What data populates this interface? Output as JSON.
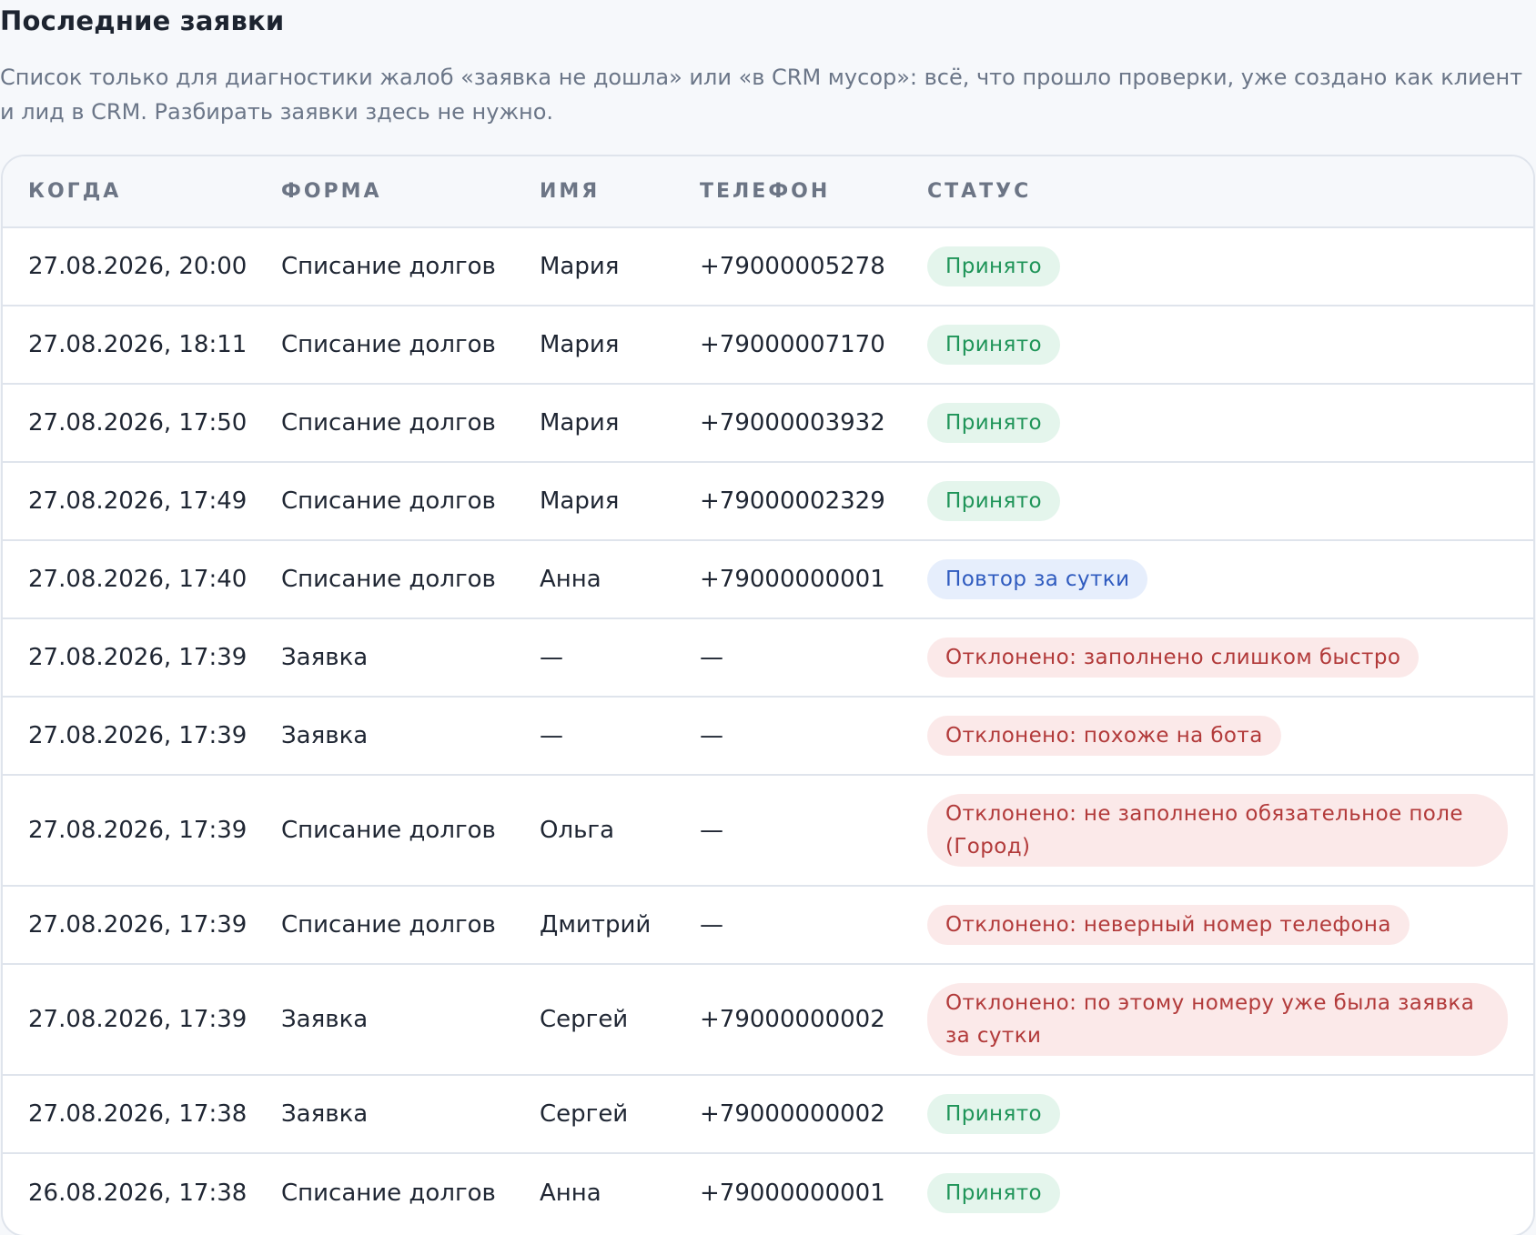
{
  "page": {
    "title": "Последние заявки",
    "description": "Список только для диагностики жалоб «заявка не дошла» или «в CRM мусор»: всё, что прошло проверки, уже создано как клиент и лид в CRM. Разбирать заявки здесь не нужно."
  },
  "colors": {
    "accepted": "#1e9458",
    "repeat": "#2f5bbf",
    "rejected": "#b23a3a"
  },
  "table": {
    "headers": [
      "КОГДА",
      "ФОРМА",
      "ИМЯ",
      "ТЕЛЕФОН",
      "СТАТУС"
    ],
    "rows": [
      {
        "when": "27.08.2026, 20:00",
        "form": "Списание долгов",
        "name": "Мария",
        "phone": "+79000005278",
        "status": "Принято",
        "status_type": "ok"
      },
      {
        "when": "27.08.2026, 18:11",
        "form": "Списание долгов",
        "name": "Мария",
        "phone": "+79000007170",
        "status": "Принято",
        "status_type": "ok"
      },
      {
        "when": "27.08.2026, 17:50",
        "form": "Списание долгов",
        "name": "Мария",
        "phone": "+79000003932",
        "status": "Принято",
        "status_type": "ok"
      },
      {
        "when": "27.08.2026, 17:49",
        "form": "Списание долгов",
        "name": "Мария",
        "phone": "+79000002329",
        "status": "Принято",
        "status_type": "ok"
      },
      {
        "when": "27.08.2026, 17:40",
        "form": "Списание долгов",
        "name": "Анна",
        "phone": "+79000000001",
        "status": "Повтор за сутки",
        "status_type": "repeat"
      },
      {
        "when": "27.08.2026, 17:39",
        "form": "Заявка",
        "name": "—",
        "phone": "—",
        "status": "Отклонено: заполнено слишком быстро",
        "status_type": "rejected"
      },
      {
        "when": "27.08.2026, 17:39",
        "form": "Заявка",
        "name": "—",
        "phone": "—",
        "status": "Отклонено: похоже на бота",
        "status_type": "rejected"
      },
      {
        "when": "27.08.2026, 17:39",
        "form": "Списание долгов",
        "name": "Ольга",
        "phone": "—",
        "status": "Отклонено: не заполнено обязательное поле (Город)",
        "status_type": "rejected",
        "tall": true
      },
      {
        "when": "27.08.2026, 17:39",
        "form": "Списание долгов",
        "name": "Дмитрий",
        "phone": "—",
        "status": "Отклонено: неверный номер телефона",
        "status_type": "rejected"
      },
      {
        "when": "27.08.2026, 17:39",
        "form": "Заявка",
        "name": "Сергей",
        "phone": "+79000000002",
        "status": "Отклонено: по этому номеру уже была заявка за сутки",
        "status_type": "rejected",
        "tall": true
      },
      {
        "when": "27.08.2026, 17:38",
        "form": "Заявка",
        "name": "Сергей",
        "phone": "+79000000002",
        "status": "Принято",
        "status_type": "ok"
      },
      {
        "when": "26.08.2026, 17:38",
        "form": "Списание долгов",
        "name": "Анна",
        "phone": "+79000000001",
        "status": "Принято",
        "status_type": "ok"
      }
    ]
  }
}
